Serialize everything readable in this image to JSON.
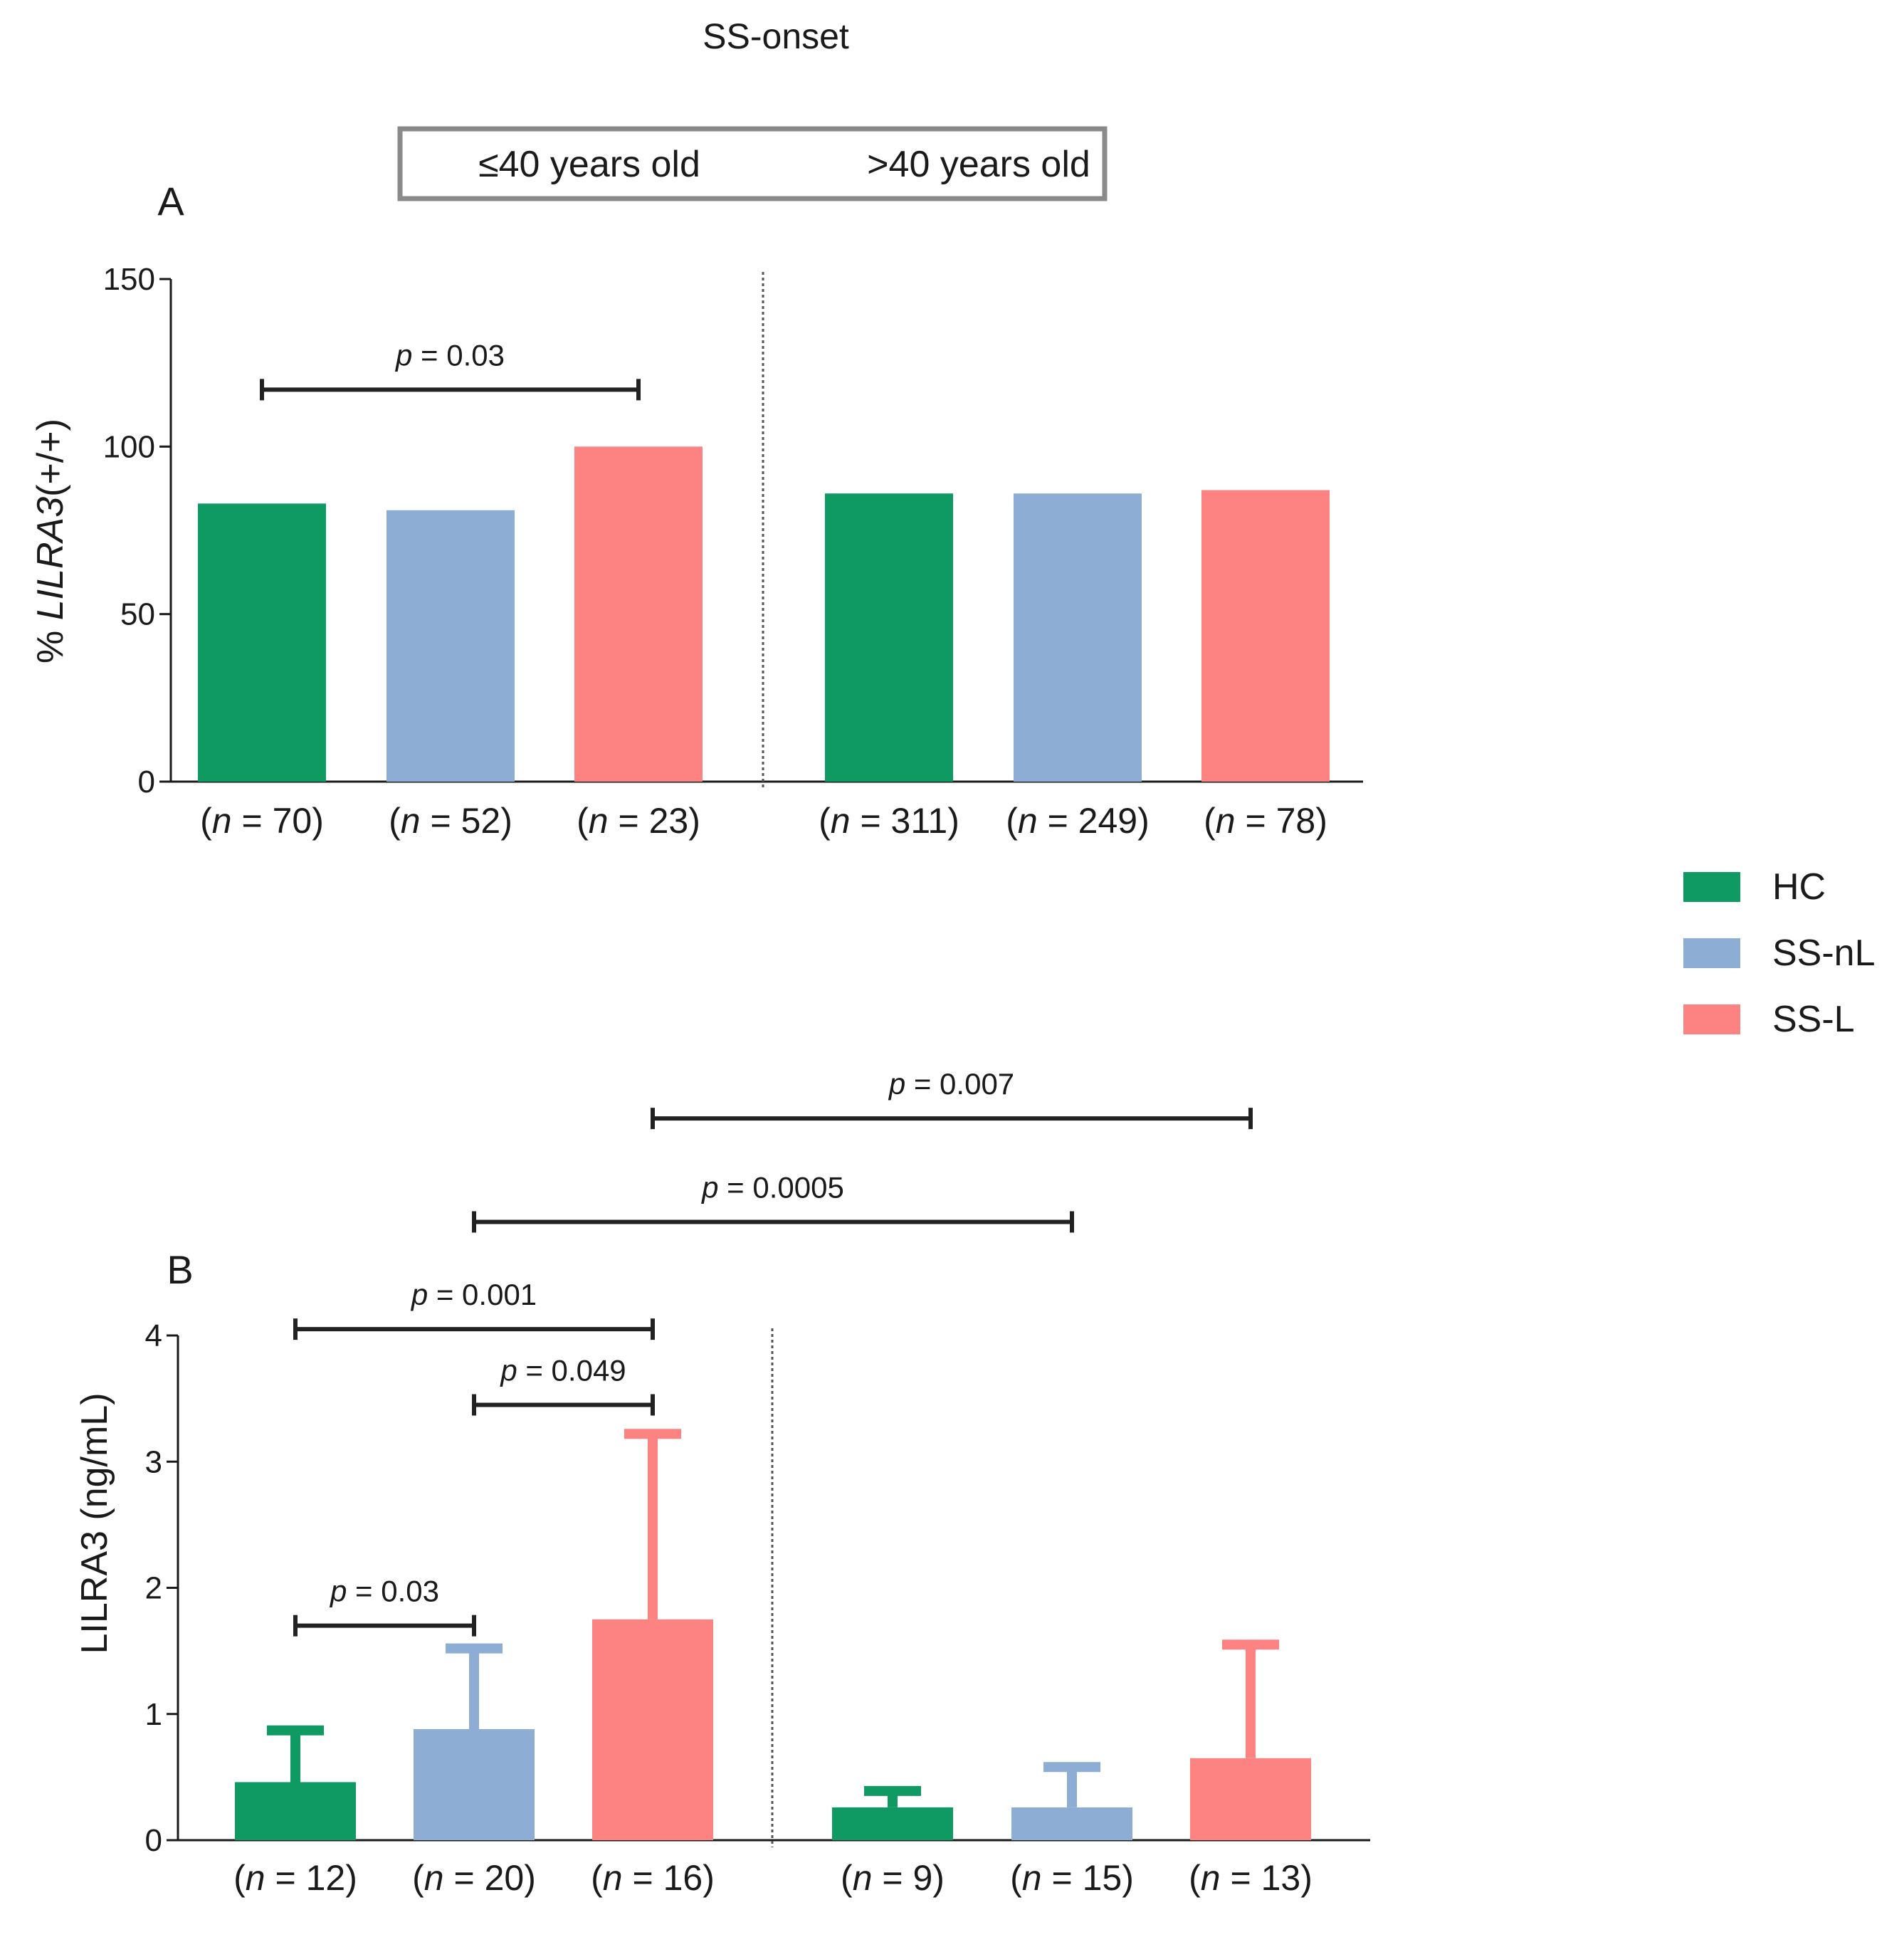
{
  "figure_title": "SS-onset",
  "age_groups": {
    "left": "≤40 years old",
    "right": ">40 years old"
  },
  "legend": [
    {
      "name": "HC",
      "color": "#0e9a62"
    },
    {
      "name": "SS-nL",
      "color": "#8eadd4"
    },
    {
      "name": "SS-L",
      "color": "#fd8383"
    }
  ],
  "chart_data": [
    {
      "type": "bar",
      "panel": "A",
      "ylabel_prefix": "% ",
      "ylabel_gene": "LILRA3",
      "ylabel_suffix": "(+/+)",
      "ylim": [
        0,
        150
      ],
      "yticks": [
        0,
        50,
        100,
        150
      ],
      "series": [
        "HC",
        "SS-nL",
        "SS-L",
        "HC",
        "SS-nL",
        "SS-L"
      ],
      "values": [
        83,
        81,
        100,
        86,
        86,
        87
      ],
      "n": [
        "70",
        "52",
        "23",
        "311",
        "249",
        "78"
      ],
      "comparisons": [
        {
          "from": 0,
          "to": 2,
          "level": 117,
          "label": "0.03"
        }
      ]
    },
    {
      "type": "bar",
      "panel": "B",
      "ylabel": "LILRA3 (ng/mL)",
      "ylim": [
        0,
        4
      ],
      "yticks": [
        0,
        1,
        2,
        3,
        4
      ],
      "series": [
        "HC",
        "SS-nL",
        "SS-L",
        "HC",
        "SS-nL",
        "SS-L"
      ],
      "values": [
        0.46,
        0.88,
        1.75,
        0.26,
        0.26,
        0.65
      ],
      "error_upper": [
        0.87,
        1.52,
        3.22,
        0.39,
        0.58,
        1.55
      ],
      "n": [
        "12",
        "20",
        "16",
        "9",
        "15",
        "13"
      ],
      "comparisons": [
        {
          "from": 0,
          "to": 1,
          "level": 1.7,
          "label": "0.03"
        },
        {
          "from": 1,
          "to": 2,
          "level": 3.45,
          "label": "0.049"
        },
        {
          "from": 0,
          "to": 2,
          "level": 4.05,
          "label": "0.001"
        },
        {
          "from": 1,
          "to": 4,
          "level": 4.9,
          "label": "0.0005"
        },
        {
          "from": 2,
          "to": 5,
          "level": 5.72,
          "label": "0.007"
        }
      ]
    }
  ]
}
